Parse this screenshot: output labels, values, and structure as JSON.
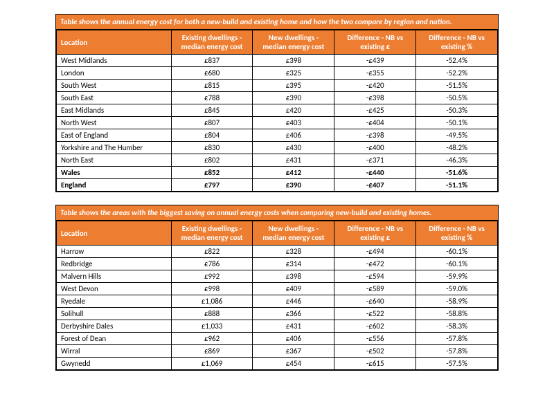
{
  "tables": [
    {
      "caption": "Table shows the annual energy cost for both a new-build and existing home and how the two compare by region and nation.",
      "columns": [
        "Location",
        "Existing dwellings - median energy cost",
        "New dwellings - median energy cost",
        "Difference - NB vs existing £",
        "Difference - NB vs existing %"
      ],
      "rows": [
        {
          "loc": "West Midlands",
          "exist": "£837",
          "new": "£398",
          "diff": "-£439",
          "pct": "-52.4%",
          "bold": false
        },
        {
          "loc": "London",
          "exist": "£680",
          "new": "£325",
          "diff": "-£355",
          "pct": "-52.2%",
          "bold": false
        },
        {
          "loc": "South West",
          "exist": "£815",
          "new": "£395",
          "diff": "-£420",
          "pct": "-51.5%",
          "bold": false
        },
        {
          "loc": "South East",
          "exist": "£788",
          "new": "£390",
          "diff": "-£398",
          "pct": "-50.5%",
          "bold": false
        },
        {
          "loc": "East Midlands",
          "exist": "£845",
          "new": "£420",
          "diff": "-£425",
          "pct": "-50.3%",
          "bold": false
        },
        {
          "loc": "North West",
          "exist": "£807",
          "new": "£403",
          "diff": "-£404",
          "pct": "-50.1%",
          "bold": false
        },
        {
          "loc": "East of England",
          "exist": "£804",
          "new": "£406",
          "diff": "-£398",
          "pct": "-49.5%",
          "bold": false
        },
        {
          "loc": "Yorkshire and The Humber",
          "exist": "£830",
          "new": "£430",
          "diff": "-£400",
          "pct": "-48.2%",
          "bold": false
        },
        {
          "loc": "North East",
          "exist": "£802",
          "new": "£431",
          "diff": "-£371",
          "pct": "-46.3%",
          "bold": false
        },
        {
          "loc": "Wales",
          "exist": "£852",
          "new": "£412",
          "diff": "-£440",
          "pct": "-51.6%",
          "bold": true
        },
        {
          "loc": "England",
          "exist": "£797",
          "new": "£390",
          "diff": "-£407",
          "pct": "-51.1%",
          "bold": true
        }
      ]
    },
    {
      "caption": "Table shows the areas with the biggest saving on annual energy costs when comparing new-build and existing homes.",
      "columns": [
        "Location",
        "Existing dwellings - median energy cost",
        "New dwellings - median energy cost",
        "Difference - NB vs existing £",
        "Difference - NB vs existing %"
      ],
      "rows": [
        {
          "loc": "Harrow",
          "exist": "£822",
          "new": "£328",
          "diff": "-£494",
          "pct": "-60.1%",
          "bold": false
        },
        {
          "loc": "Redbridge",
          "exist": "£786",
          "new": "£314",
          "diff": "-£472",
          "pct": "-60.1%",
          "bold": false
        },
        {
          "loc": "Malvern Hills",
          "exist": "£992",
          "new": "£398",
          "diff": "-£594",
          "pct": "-59.9%",
          "bold": false
        },
        {
          "loc": "West Devon",
          "exist": "£998",
          "new": "£409",
          "diff": "-£589",
          "pct": "-59.0%",
          "bold": false
        },
        {
          "loc": "Ryedale",
          "exist": "£1,086",
          "new": "£446",
          "diff": "-£640",
          "pct": "-58.9%",
          "bold": false
        },
        {
          "loc": "Solihull",
          "exist": "£888",
          "new": "£366",
          "diff": "-£522",
          "pct": "-58.8%",
          "bold": false
        },
        {
          "loc": "Derbyshire Dales",
          "exist": "£1,033",
          "new": "£431",
          "diff": "-£602",
          "pct": "-58.3%",
          "bold": false
        },
        {
          "loc": "Forest of Dean",
          "exist": "£962",
          "new": "£406",
          "diff": "-£556",
          "pct": "-57.8%",
          "bold": false
        },
        {
          "loc": "Wirral",
          "exist": "£869",
          "new": "£367",
          "diff": "-£502",
          "pct": "-57.8%",
          "bold": false
        },
        {
          "loc": "Gwynedd",
          "exist": "£1,069",
          "new": "£454",
          "diff": "-£615",
          "pct": "-57.5%",
          "bold": false
        }
      ]
    }
  ],
  "style": {
    "header_bg": "#ed7d31",
    "header_fg": "#ffffff",
    "border_color": "#000000",
    "body_bg": "#ffffff",
    "font_family": "Calibri, Arial, sans-serif",
    "font_size_pt": 11
  }
}
